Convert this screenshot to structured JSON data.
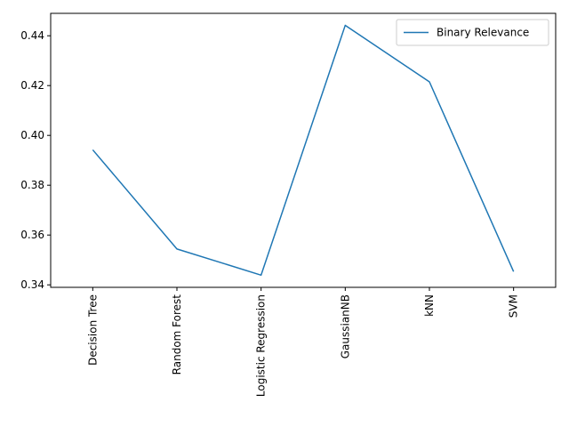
{
  "chart_data": {
    "type": "line",
    "categories": [
      "Decision Tree",
      "Random Forest",
      "Logistic Regression",
      "GaussianNB",
      "kNN",
      "SVM"
    ],
    "series": [
      {
        "name": "Binary Relevance",
        "values": [
          0.3942,
          0.3544,
          0.3439,
          0.4442,
          0.4215,
          0.3453
        ],
        "color": "#1f77b4"
      }
    ],
    "y_ticks": [
      0.34,
      0.36,
      0.38,
      0.4,
      0.42,
      0.44
    ],
    "y_tick_labels": [
      "0.34",
      "0.36",
      "0.38",
      "0.40",
      "0.42",
      "0.44"
    ],
    "ylim": [
      0.339,
      0.449
    ],
    "x_tick_rotation": 90,
    "legend": {
      "placement": "upper right"
    },
    "grid": false,
    "title": "",
    "xlabel": "",
    "ylabel": ""
  }
}
